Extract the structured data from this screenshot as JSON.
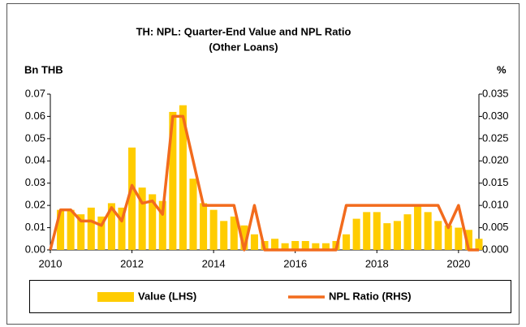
{
  "chart_data": {
    "type": "bar-line",
    "title": "TH: NPL: Quarter-End Value and NPL Ratio",
    "subtitle": "(Other Loans)",
    "y_label": "Bn THB",
    "y2_label": "%",
    "x": [
      2010,
      2010.25,
      2010.5,
      2010.75,
      2011,
      2011.25,
      2011.5,
      2011.75,
      2012,
      2012.25,
      2012.5,
      2012.75,
      2013,
      2013.25,
      2013.5,
      2013.75,
      2014,
      2014.25,
      2014.5,
      2014.75,
      2015,
      2015.25,
      2015.5,
      2015.75,
      2016,
      2016.25,
      2016.5,
      2016.75,
      2017,
      2017.25,
      2017.5,
      2017.75,
      2018,
      2018.25,
      2018.5,
      2018.75,
      2019,
      2019.25,
      2019.5,
      2019.75,
      2020,
      2020.25,
      2020.5
    ],
    "series": [
      {
        "name": "Value (LHS)",
        "type": "bar",
        "color": "#ffcc00",
        "values": [
          null,
          0.018,
          0.018,
          0.016,
          0.019,
          0.015,
          0.021,
          0.019,
          0.046,
          0.028,
          0.025,
          0.022,
          0.062,
          0.065,
          0.032,
          0.021,
          0.018,
          0.013,
          0.015,
          0.011,
          0.007,
          0.004,
          0.005,
          0.003,
          0.004,
          0.004,
          0.003,
          0.003,
          0.004,
          0.007,
          0.014,
          0.017,
          0.017,
          0.012,
          0.013,
          0.016,
          0.02,
          0.017,
          0.013,
          0.011,
          0.01,
          0.009,
          0.005
        ]
      },
      {
        "name": "NPL Ratio (RHS)",
        "type": "line",
        "axis": "y2",
        "color": "#f26b1d",
        "values": [
          0,
          0.009,
          0.009,
          0.0065,
          0.0065,
          0.0055,
          0.0095,
          0.0065,
          0.0145,
          0.0105,
          0.011,
          0.008,
          0.03,
          0.03,
          0.02,
          0.01,
          0.01,
          0.01,
          0.01,
          0,
          0.01,
          0,
          0,
          0,
          0,
          0,
          0,
          0,
          0,
          0.01,
          0.01,
          0.01,
          0.01,
          0.01,
          0.01,
          0.01,
          0.01,
          0.01,
          0.01,
          0.005,
          0.01,
          0,
          0
        ]
      }
    ],
    "xlim": [
      2010,
      2020.5
    ],
    "xticks": [
      2010,
      2012,
      2014,
      2016,
      2018,
      2020
    ],
    "ylim": [
      0,
      0.07
    ],
    "yticks": [
      {
        "value": 0,
        "label": "0.00"
      },
      0.01,
      0.02,
      0.03,
      0.04,
      0.05,
      0.06,
      0.07
    ],
    "y2lim": [
      0,
      0.035
    ],
    "y2ticks": [
      {
        "value": 0,
        "label": "0.000"
      },
      0.005,
      {
        "value": 0.01,
        "label": "0.010"
      },
      0.015,
      {
        "value": 0.02,
        "label": "0.020"
      },
      0.025,
      {
        "value": 0.03,
        "label": "0.030"
      },
      0.035
    ],
    "legend": "bottom",
    "grid": false
  }
}
